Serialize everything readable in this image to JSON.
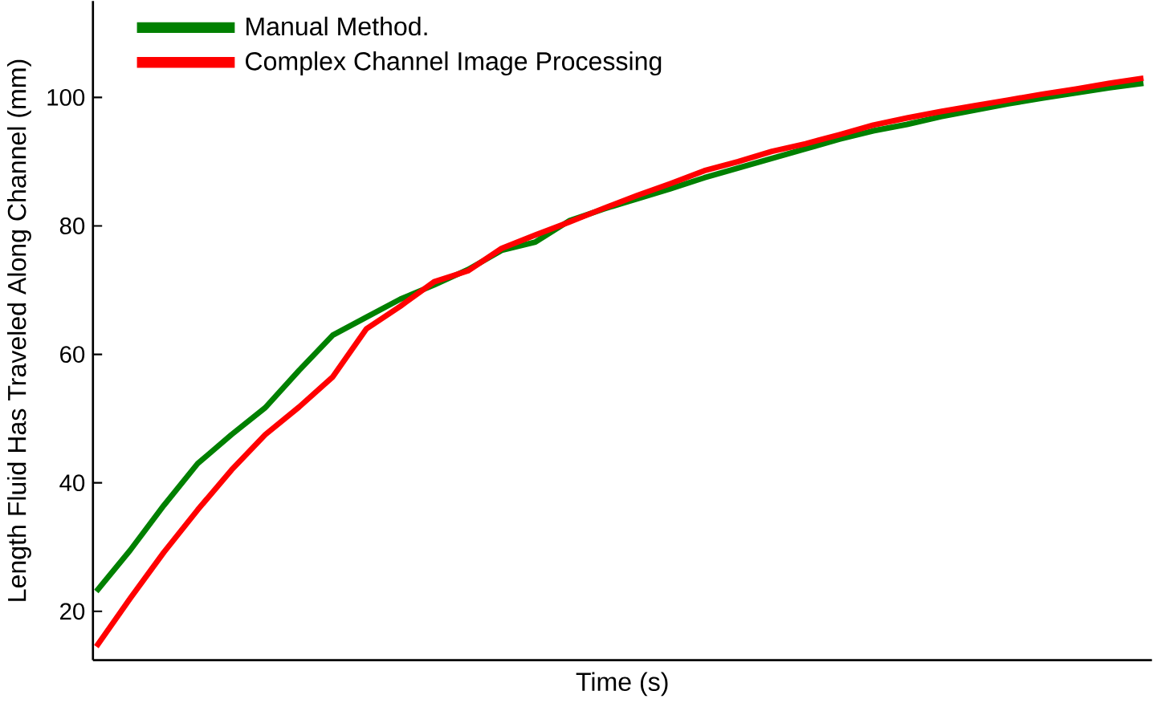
{
  "chart_data": {
    "type": "line",
    "xlabel": "Time (s)",
    "ylabel": "Length Fluid Has Traveled Along Channel  (mm)",
    "categories": [
      null,
      null,
      null,
      null,
      null,
      null,
      null,
      null,
      null,
      null,
      null,
      null,
      null,
      null,
      null,
      null,
      null,
      null,
      null,
      null,
      null,
      null,
      null,
      null,
      null,
      null,
      null,
      null,
      null,
      null,
      null,
      null
    ],
    "series": [
      {
        "name": "Manual Method.",
        "color": "#008000",
        "values": [
          23.1,
          29.5,
          36.5,
          43,
          47.5,
          51.7,
          57.5,
          63,
          65.8,
          68.6,
          70.8,
          73.2,
          76.2,
          77.5,
          80.8,
          82.6,
          84.2,
          85.8,
          87.5,
          89,
          90.5,
          92,
          93.5,
          94.8,
          95.8,
          97,
          98,
          99,
          99.9,
          100.7,
          101.5,
          102.2
        ]
      },
      {
        "name": "Complex Channel Image Processing",
        "color": "#ff0000",
        "values": [
          14.5,
          22,
          29.2,
          35.8,
          42,
          47.5,
          51.8,
          56.5,
          64,
          67.5,
          71.3,
          73,
          76.5,
          78.6,
          80.6,
          82.7,
          84.7,
          86.6,
          88.6,
          90,
          91.6,
          92.8,
          94.2,
          95.7,
          96.8,
          97.8,
          98.7,
          99.6,
          100.5,
          101.3,
          102.2,
          103
        ]
      }
    ],
    "ylim": [
      12.4,
      115
    ],
    "yticks": [
      20,
      40,
      60,
      80,
      100
    ],
    "tick_labels": "y",
    "legend": "top left",
    "line_style": "solid",
    "marker": "none"
  }
}
